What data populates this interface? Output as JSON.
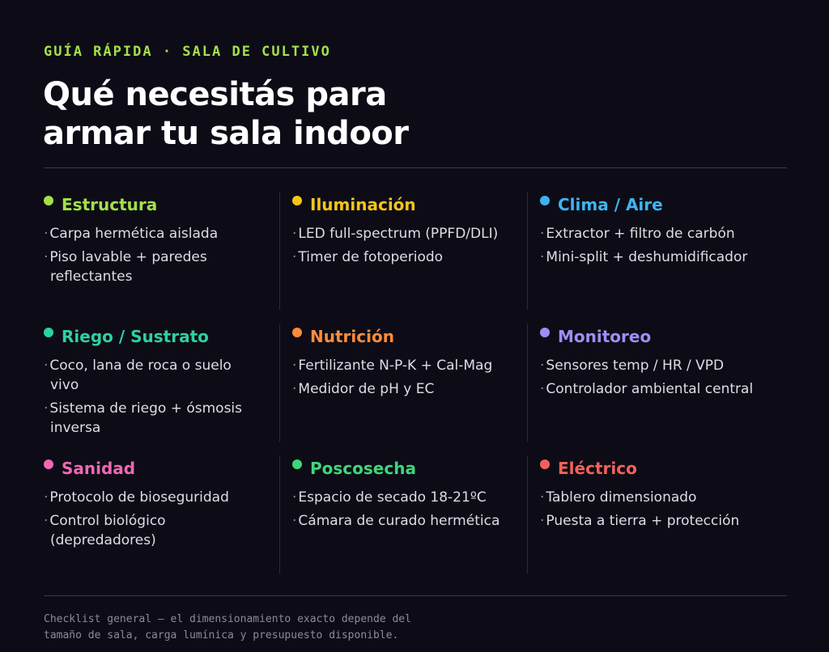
{
  "header": {
    "kicker": "GUÍA RÁPIDA · SALA DE CULTIVO",
    "title_line1": "Qué necesitás para",
    "title_line2": "armar tu sala indoor"
  },
  "categories": [
    {
      "title": "Estructura",
      "color": "#a3e04a",
      "items": [
        "Carpa hermética aislada",
        "Piso lavable + paredes reflectantes"
      ]
    },
    {
      "title": "Iluminación",
      "color": "#f5c518",
      "items": [
        "LED full-spectrum (PPFD/DLI)",
        "Timer de fotoperiodo"
      ]
    },
    {
      "title": "Clima / Aire",
      "color": "#3db4f2",
      "items": [
        "Extractor + filtro de carbón",
        "Mini-split + deshumidificador"
      ]
    },
    {
      "title": "Riego / Sustrato",
      "color": "#2ed1a0",
      "items": [
        "Coco, lana de roca o suelo vivo",
        "Sistema de riego + ósmosis inversa"
      ]
    },
    {
      "title": "Nutrición",
      "color": "#ff8c3a",
      "items": [
        "Fertilizante N-P-K + Cal-Mag",
        "Medidor de pH y EC"
      ]
    },
    {
      "title": "Monitoreo",
      "color": "#a38cf5",
      "items": [
        "Sensores temp / HR / VPD",
        "Controlador ambiental central"
      ]
    },
    {
      "title": "Sanidad",
      "color": "#f067b4",
      "items": [
        "Protocolo de bioseguridad",
        "Control biológico (depredadores)"
      ]
    },
    {
      "title": "Poscosecha",
      "color": "#3fd67a",
      "items": [
        "Espacio de secado 18-21ºC",
        "Cámara de curado hermética"
      ]
    },
    {
      "title": "Eléctrico",
      "color": "#f2625a",
      "items": [
        "Tablero dimensionado",
        "Puesta a tierra + protección"
      ]
    }
  ],
  "footnote": {
    "line1": "Checklist general — el dimensionamiento exacto depende del",
    "line2": "tamaño de sala, carga lumínica y presupuesto disponible."
  }
}
